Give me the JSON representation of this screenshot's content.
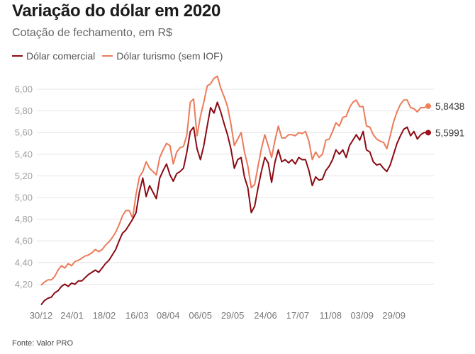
{
  "header": {
    "title": "Variação do dólar em 2020",
    "subtitle": "Cotação de fechamento, em R$"
  },
  "legend": [
    {
      "label": "Dólar comercial",
      "color": "#8b0a14"
    },
    {
      "label": "Dólar turismo (sem IOF)",
      "color": "#ec7b5a"
    }
  ],
  "footer": {
    "source": "Fonte: Valor PRO"
  },
  "chart_data": {
    "type": "line",
    "title": "Variação do dólar em 2020",
    "subtitle": "Cotação de fechamento, em R$",
    "xlabel": "",
    "ylabel": "",
    "ylim": [
      4.0,
      6.0
    ],
    "yticks": [
      4.2,
      4.4,
      4.6,
      4.8,
      5.0,
      5.2,
      5.4,
      5.6,
      5.8,
      6.0
    ],
    "ytick_labels": [
      "4,20",
      "4,40",
      "4,60",
      "4,80",
      "5,00",
      "5,20",
      "5,40",
      "5,60",
      "5,80",
      "6,00"
    ],
    "xticks": [
      {
        "label": "30/12",
        "index": 0
      },
      {
        "label": "24/01",
        "index": 9.1
      },
      {
        "label": "18/02",
        "index": 18.6
      },
      {
        "label": "16/03",
        "index": 28.3
      },
      {
        "label": "08/04",
        "index": 37.5
      },
      {
        "label": "06/05",
        "index": 47
      },
      {
        "label": "29/05",
        "index": 56.5
      },
      {
        "label": "24/06",
        "index": 66.2
      },
      {
        "label": "17/07",
        "index": 75.7
      },
      {
        "label": "11/08",
        "index": 85.4
      },
      {
        "label": "03/09",
        "index": 94.7
      },
      {
        "label": "29/09",
        "index": 104.1
      }
    ],
    "grid": true,
    "legend_position": "top-left",
    "series": [
      {
        "name": "Dólar comercial",
        "color": "#8b0a14",
        "dot_color": "#a00f1a",
        "last_value_label": "5,5991",
        "values": [
          4.01,
          4.05,
          4.07,
          4.08,
          4.12,
          4.14,
          4.18,
          4.2,
          4.18,
          4.21,
          4.2,
          4.23,
          4.23,
          4.26,
          4.29,
          4.31,
          4.33,
          4.31,
          4.35,
          4.39,
          4.42,
          4.47,
          4.52,
          4.6,
          4.67,
          4.7,
          4.75,
          4.8,
          4.86,
          5.05,
          5.18,
          5.01,
          5.11,
          5.05,
          4.99,
          5.18,
          5.25,
          5.31,
          5.21,
          5.15,
          5.22,
          5.24,
          5.27,
          5.42,
          5.61,
          5.65,
          5.45,
          5.35,
          5.48,
          5.66,
          5.83,
          5.78,
          5.88,
          5.79,
          5.68,
          5.58,
          5.45,
          5.27,
          5.35,
          5.37,
          5.19,
          5.09,
          4.86,
          4.92,
          5.09,
          5.24,
          5.37,
          5.32,
          5.14,
          5.33,
          5.44,
          5.33,
          5.35,
          5.32,
          5.35,
          5.31,
          5.37,
          5.35,
          5.35,
          5.25,
          5.11,
          5.19,
          5.16,
          5.17,
          5.25,
          5.29,
          5.35,
          5.44,
          5.4,
          5.44,
          5.37,
          5.48,
          5.53,
          5.58,
          5.53,
          5.61,
          5.44,
          5.42,
          5.33,
          5.3,
          5.31,
          5.27,
          5.24,
          5.3,
          5.4,
          5.5,
          5.57,
          5.63,
          5.65,
          5.57,
          5.61,
          5.54,
          5.58,
          5.6,
          5.5991
        ]
      },
      {
        "name": "Dólar turismo (sem IOF)",
        "color": "#ec7b5a",
        "dot_color": "#f0825a",
        "last_value_label": "5,8438",
        "values": [
          4.19,
          4.22,
          4.24,
          4.24,
          4.27,
          4.33,
          4.37,
          4.35,
          4.39,
          4.37,
          4.41,
          4.42,
          4.44,
          4.46,
          4.47,
          4.49,
          4.52,
          4.5,
          4.52,
          4.56,
          4.59,
          4.63,
          4.68,
          4.75,
          4.83,
          4.88,
          4.88,
          4.81,
          5.03,
          5.19,
          5.24,
          5.33,
          5.27,
          5.24,
          5.21,
          5.37,
          5.44,
          5.5,
          5.48,
          5.31,
          5.42,
          5.46,
          5.47,
          5.58,
          5.88,
          5.91,
          5.57,
          5.75,
          5.88,
          6.03,
          6.05,
          6.1,
          6.12,
          6.01,
          5.93,
          5.84,
          5.68,
          5.48,
          5.54,
          5.6,
          5.42,
          5.29,
          5.09,
          5.12,
          5.29,
          5.45,
          5.58,
          5.48,
          5.37,
          5.53,
          5.66,
          5.55,
          5.55,
          5.58,
          5.58,
          5.57,
          5.6,
          5.59,
          5.61,
          5.52,
          5.35,
          5.42,
          5.37,
          5.4,
          5.53,
          5.54,
          5.61,
          5.69,
          5.66,
          5.74,
          5.75,
          5.83,
          5.88,
          5.9,
          5.84,
          5.84,
          5.66,
          5.65,
          5.58,
          5.54,
          5.52,
          5.51,
          5.45,
          5.57,
          5.7,
          5.79,
          5.86,
          5.9,
          5.9,
          5.83,
          5.82,
          5.79,
          5.83,
          5.83,
          5.8438
        ]
      }
    ]
  }
}
